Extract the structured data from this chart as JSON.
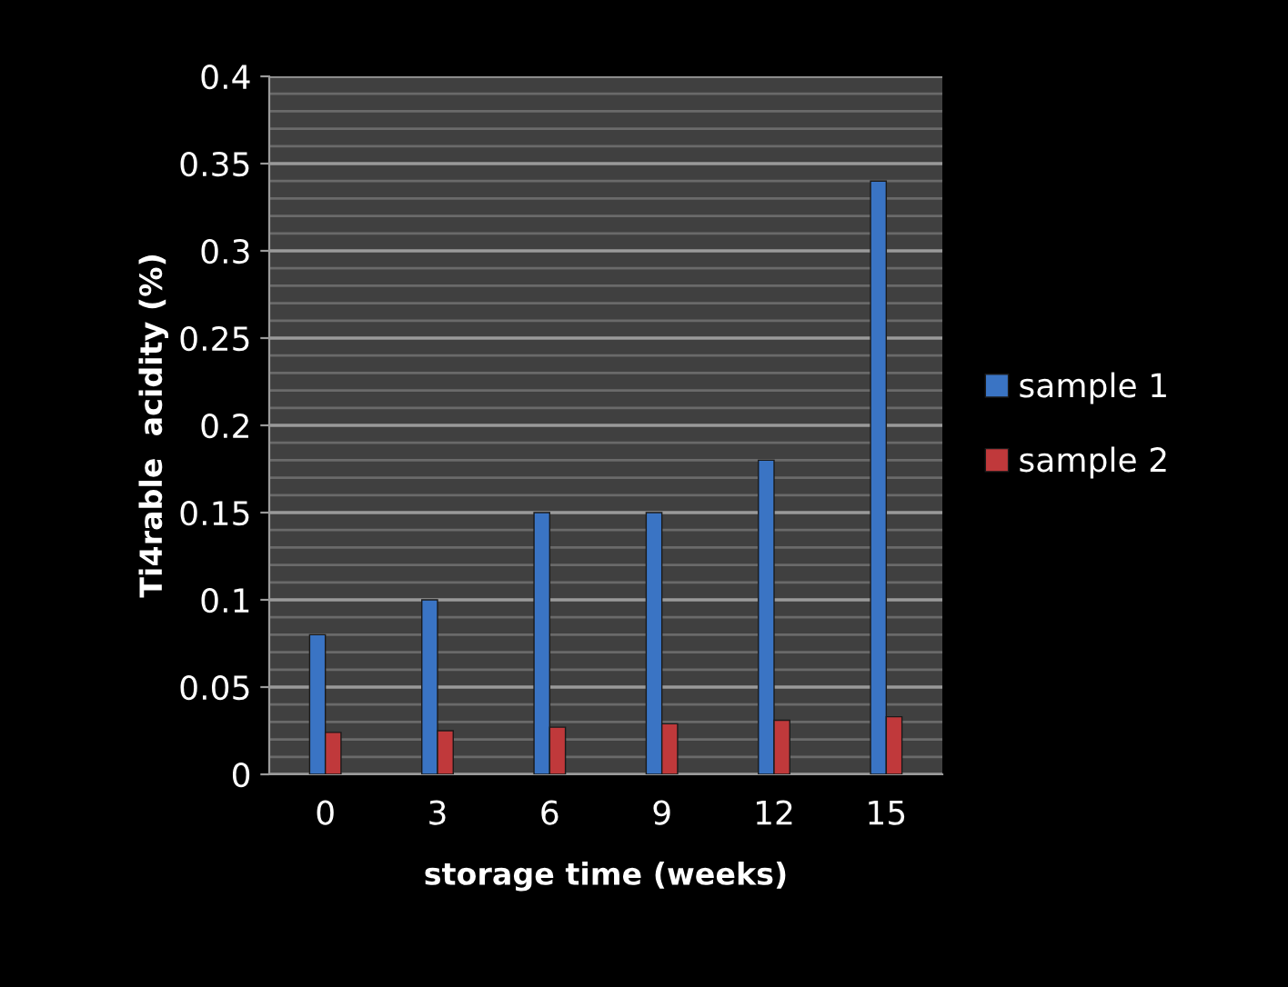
{
  "chart_data": {
    "type": "bar",
    "xlabel": "storage time (weeks)",
    "ylabel": "Ti4rable  acidity (%)",
    "categories": [
      "0",
      "3",
      "6",
      "9",
      "12",
      "15"
    ],
    "series": [
      {
        "name": "sample 1",
        "color": "#3a74c4",
        "values": [
          0.08,
          0.1,
          0.15,
          0.15,
          0.18,
          0.34
        ]
      },
      {
        "name": "sample 2",
        "color": "#c0393b",
        "values": [
          0.024,
          0.025,
          0.027,
          0.029,
          0.031,
          0.033
        ]
      }
    ],
    "ylim": [
      0,
      0.4
    ],
    "yticks": [
      0,
      0.05,
      0.1,
      0.15,
      0.2,
      0.25,
      0.3,
      0.35,
      0.4
    ],
    "grid": "y",
    "legend": "right"
  }
}
